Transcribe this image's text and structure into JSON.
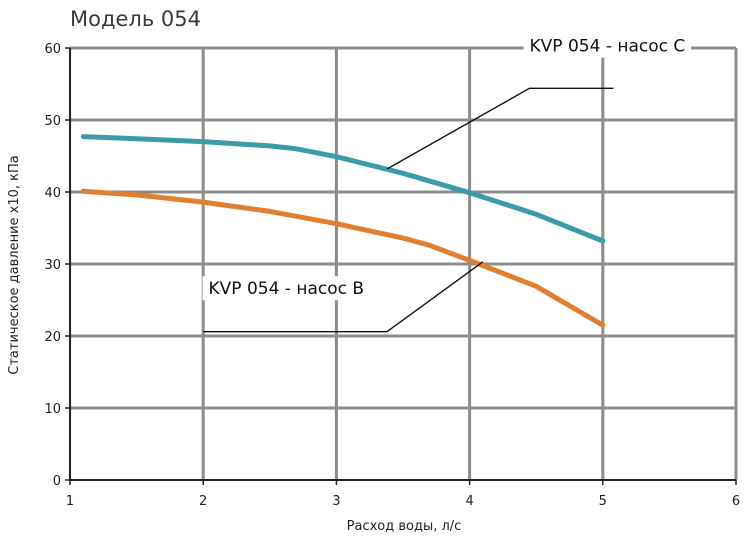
{
  "chart_data": {
    "type": "line",
    "title": "Модель 054",
    "xlabel": "Расход воды, л/с",
    "ylabel": "Статическое давление x10, кПа",
    "xlim": [
      1,
      6
    ],
    "ylim": [
      0,
      60
    ],
    "xticks": [
      1,
      2,
      3,
      4,
      5,
      6
    ],
    "yticks": [
      0,
      10,
      20,
      30,
      40,
      50,
      60
    ],
    "grid": true,
    "series": [
      {
        "name": "KVP 054 - насос C",
        "color": "#3d9aaa",
        "x": [
          1.1,
          1.5,
          2.0,
          2.5,
          2.7,
          3.0,
          3.5,
          4.0,
          4.5,
          5.0
        ],
        "y": [
          47.7,
          47.4,
          47.0,
          46.4,
          46.0,
          44.9,
          42.6,
          39.9,
          36.9,
          33.2
        ]
      },
      {
        "name": "KVP 054 - насос B",
        "color": "#e07f30",
        "x": [
          1.1,
          1.5,
          2.0,
          2.5,
          3.0,
          3.5,
          3.7,
          4.0,
          4.5,
          5.0
        ],
        "y": [
          40.1,
          39.6,
          38.6,
          37.3,
          35.6,
          33.6,
          32.6,
          30.5,
          26.9,
          21.5
        ]
      }
    ]
  }
}
